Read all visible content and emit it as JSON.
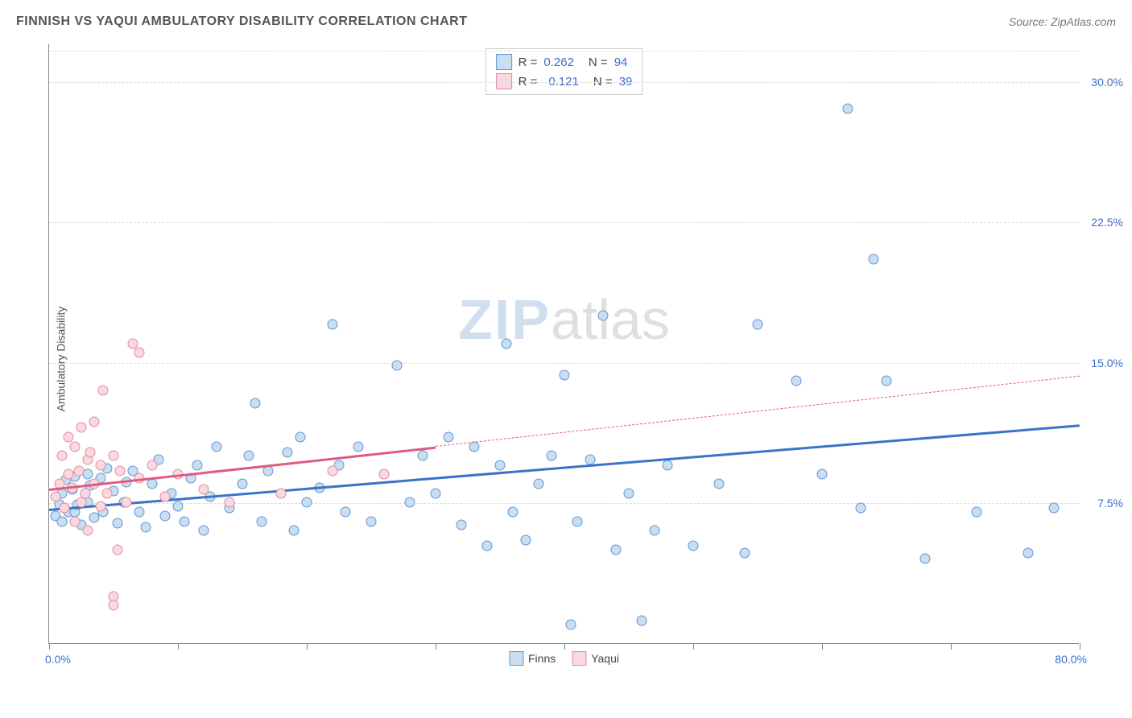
{
  "title": "FINNISH VS YAQUI AMBULATORY DISABILITY CORRELATION CHART",
  "source_prefix": "Source: ",
  "source": "ZipAtlas.com",
  "ylabel": "Ambulatory Disability",
  "watermark_bold": "ZIP",
  "watermark_light": "atlas",
  "chart": {
    "type": "scatter",
    "xlim": [
      0,
      80
    ],
    "ylim": [
      0,
      32
    ],
    "background_color": "#ffffff",
    "grid_color": "#dddddd",
    "grid_dash": true,
    "y_gridlines": [
      7.5,
      15.0,
      22.5,
      30.0
    ],
    "y_tick_labels": [
      "7.5%",
      "15.0%",
      "22.5%",
      "30.0%"
    ],
    "x_ticks": [
      0,
      10,
      20,
      30,
      40,
      50,
      60,
      70,
      80
    ],
    "x_axis_min_label": "0.0%",
    "x_axis_max_label": "80.0%",
    "axis_label_color": "#3b6fc9",
    "series": [
      {
        "name": "Finns",
        "marker_fill": "#c9deef",
        "marker_stroke": "#5f97d6",
        "marker_size": 13,
        "trend_color": "#3b73c9",
        "trend_solid_range": [
          0,
          80
        ],
        "trend_y": [
          7.2,
          11.7
        ],
        "R": "0.262",
        "N": "94",
        "points": [
          [
            0.5,
            6.8
          ],
          [
            0.8,
            7.4
          ],
          [
            1.0,
            8.0
          ],
          [
            1.0,
            6.5
          ],
          [
            1.2,
            7.2
          ],
          [
            1.3,
            8.7
          ],
          [
            1.5,
            7.0
          ],
          [
            1.8,
            8.2
          ],
          [
            2.0,
            7.0
          ],
          [
            2.0,
            8.9
          ],
          [
            2.2,
            7.4
          ],
          [
            2.5,
            6.3
          ],
          [
            2.8,
            8.0
          ],
          [
            3.0,
            9.0
          ],
          [
            3.0,
            7.5
          ],
          [
            3.2,
            8.4
          ],
          [
            3.5,
            6.7
          ],
          [
            4.0,
            8.8
          ],
          [
            4.2,
            7.0
          ],
          [
            4.5,
            9.3
          ],
          [
            5.0,
            8.1
          ],
          [
            5.3,
            6.4
          ],
          [
            5.8,
            7.5
          ],
          [
            6.0,
            8.6
          ],
          [
            6.5,
            9.2
          ],
          [
            7.0,
            7.0
          ],
          [
            7.5,
            6.2
          ],
          [
            8.0,
            8.5
          ],
          [
            8.5,
            9.8
          ],
          [
            9.0,
            6.8
          ],
          [
            9.5,
            8.0
          ],
          [
            10.0,
            7.3
          ],
          [
            10.5,
            6.5
          ],
          [
            11.0,
            8.8
          ],
          [
            11.5,
            9.5
          ],
          [
            12.0,
            6.0
          ],
          [
            12.5,
            7.8
          ],
          [
            13.0,
            10.5
          ],
          [
            14.0,
            7.2
          ],
          [
            15.0,
            8.5
          ],
          [
            15.5,
            10.0
          ],
          [
            16.0,
            12.8
          ],
          [
            16.5,
            6.5
          ],
          [
            17.0,
            9.2
          ],
          [
            18.0,
            8.0
          ],
          [
            18.5,
            10.2
          ],
          [
            19.0,
            6.0
          ],
          [
            19.5,
            11.0
          ],
          [
            20.0,
            7.5
          ],
          [
            21.0,
            8.3
          ],
          [
            22.0,
            17.0
          ],
          [
            22.5,
            9.5
          ],
          [
            23.0,
            7.0
          ],
          [
            24.0,
            10.5
          ],
          [
            25.0,
            6.5
          ],
          [
            26.0,
            9.0
          ],
          [
            27.0,
            14.8
          ],
          [
            28.0,
            7.5
          ],
          [
            29.0,
            10.0
          ],
          [
            30.0,
            8.0
          ],
          [
            31.0,
            11.0
          ],
          [
            32.0,
            6.3
          ],
          [
            33.0,
            10.5
          ],
          [
            34.0,
            5.2
          ],
          [
            35.0,
            9.5
          ],
          [
            35.5,
            16.0
          ],
          [
            36.0,
            7.0
          ],
          [
            37.0,
            5.5
          ],
          [
            38.0,
            8.5
          ],
          [
            39.0,
            10.0
          ],
          [
            40.0,
            14.3
          ],
          [
            40.5,
            1.0
          ],
          [
            41.0,
            6.5
          ],
          [
            42.0,
            9.8
          ],
          [
            43.0,
            17.5
          ],
          [
            44.0,
            5.0
          ],
          [
            45.0,
            8.0
          ],
          [
            46.0,
            1.2
          ],
          [
            47.0,
            6.0
          ],
          [
            48.0,
            9.5
          ],
          [
            50.0,
            5.2
          ],
          [
            52.0,
            8.5
          ],
          [
            54.0,
            4.8
          ],
          [
            55.0,
            17.0
          ],
          [
            58.0,
            14.0
          ],
          [
            60.0,
            9.0
          ],
          [
            62.0,
            28.5
          ],
          [
            63.0,
            7.2
          ],
          [
            64.0,
            20.5
          ],
          [
            65.0,
            14.0
          ],
          [
            68.0,
            4.5
          ],
          [
            72.0,
            7.0
          ],
          [
            76.0,
            4.8
          ],
          [
            78.0,
            7.2
          ]
        ]
      },
      {
        "name": "Yaqui",
        "marker_fill": "#f9d9e0",
        "marker_stroke": "#e48aa3",
        "marker_size": 13,
        "trend_color": "#e05a82",
        "trend_solid_range": [
          0,
          30
        ],
        "trend_dash_range": [
          30,
          80
        ],
        "trend_y_full": [
          8.3,
          14.3
        ],
        "R": "0.121",
        "N": "39",
        "points": [
          [
            0.5,
            7.8
          ],
          [
            0.8,
            8.5
          ],
          [
            1.0,
            10.0
          ],
          [
            1.2,
            7.2
          ],
          [
            1.5,
            9.0
          ],
          [
            1.5,
            11.0
          ],
          [
            1.8,
            8.3
          ],
          [
            2.0,
            6.5
          ],
          [
            2.0,
            10.5
          ],
          [
            2.3,
            9.2
          ],
          [
            2.5,
            7.5
          ],
          [
            2.5,
            11.5
          ],
          [
            2.8,
            8.0
          ],
          [
            3.0,
            9.8
          ],
          [
            3.0,
            6.0
          ],
          [
            3.2,
            10.2
          ],
          [
            3.5,
            8.5
          ],
          [
            3.5,
            11.8
          ],
          [
            4.0,
            7.3
          ],
          [
            4.0,
            9.5
          ],
          [
            4.2,
            13.5
          ],
          [
            4.5,
            8.0
          ],
          [
            5.0,
            10.0
          ],
          [
            5.0,
            2.5
          ],
          [
            5.0,
            2.0
          ],
          [
            5.3,
            5.0
          ],
          [
            5.5,
            9.2
          ],
          [
            6.0,
            7.5
          ],
          [
            6.5,
            16.0
          ],
          [
            7.0,
            8.8
          ],
          [
            7.0,
            15.5
          ],
          [
            8.0,
            9.5
          ],
          [
            9.0,
            7.8
          ],
          [
            10.0,
            9.0
          ],
          [
            12.0,
            8.2
          ],
          [
            14.0,
            7.5
          ],
          [
            18.0,
            8.0
          ],
          [
            22.0,
            9.2
          ],
          [
            26.0,
            9.0
          ]
        ]
      }
    ],
    "legend_top": {
      "r_label": "R =",
      "n_label": "N ="
    },
    "legend_bottom": [
      "Finns",
      "Yaqui"
    ]
  }
}
